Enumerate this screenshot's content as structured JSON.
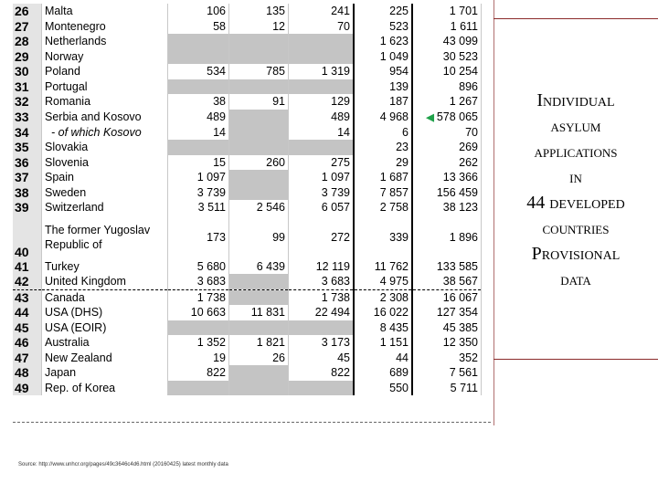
{
  "title": {
    "line1": "Individual",
    "line2": "asylum",
    "line3": "applications",
    "line4": "in",
    "line5": "44 developed",
    "line6": "countries",
    "line7": "Provisional",
    "line8": "data"
  },
  "source": "Source: http://www.unhcr.org/pages/49c3646c4d6.html (20160425) latest monthly data",
  "rows": [
    {
      "n": "26",
      "country": "Malta",
      "c1": "106",
      "c2": "135",
      "c3": "241",
      "c4": "225",
      "c5": "1 701"
    },
    {
      "n": "27",
      "country": "Montenegro",
      "c1": "58",
      "c2": "12",
      "c3": "70",
      "c4": "523",
      "c5": "1 611"
    },
    {
      "n": "28",
      "country": "Netherlands",
      "c1": "",
      "c2": "",
      "c3": "",
      "c4": "1 623",
      "c5": "43 099"
    },
    {
      "n": "29",
      "country": "Norway",
      "c1": "",
      "c2": "",
      "c3": "",
      "c4": "1 049",
      "c5": "30 523"
    },
    {
      "n": "30",
      "country": "Poland",
      "c1": "534",
      "c2": "785",
      "c3": "1 319",
      "c4": "954",
      "c5": "10 254"
    },
    {
      "n": "31",
      "country": "Portugal",
      "c1": "",
      "c2": "",
      "c3": "",
      "c4": "139",
      "c5": "896"
    },
    {
      "n": "32",
      "country": "Romania",
      "c1": "38",
      "c2": "91",
      "c3": "129",
      "c4": "187",
      "c5": "1 267"
    },
    {
      "n": "33",
      "country": "Serbia and Kosovo",
      "c1": "489",
      "c2": "",
      "c3": "489",
      "c4": "4 968",
      "c5": "578 065"
    },
    {
      "n": "34",
      "country": "- of which Kosovo",
      "c1": "14",
      "c2": "",
      "c3": "14",
      "c4": "6",
      "c5": "70"
    },
    {
      "n": "35",
      "country": "Slovakia",
      "c1": "",
      "c2": "",
      "c3": "",
      "c4": "23",
      "c5": "269"
    },
    {
      "n": "36",
      "country": "Slovenia",
      "c1": "15",
      "c2": "260",
      "c3": "275",
      "c4": "29",
      "c5": "262"
    },
    {
      "n": "37",
      "country": "Spain",
      "c1": "1 097",
      "c2": "",
      "c3": "1 097",
      "c4": "1 687",
      "c5": "13 366"
    },
    {
      "n": "38",
      "country": "Sweden",
      "c1": "3 739",
      "c2": "",
      "c3": "3 739",
      "c4": "7 857",
      "c5": "156 459"
    },
    {
      "n": "39",
      "country": "Switzerland",
      "c1": "3 511",
      "c2": "2 546",
      "c3": "6 057",
      "c4": "2 758",
      "c5": "38 123"
    },
    {
      "n": "40",
      "country": "The former Yugoslav Republic of",
      "c1": "173",
      "c2": "99",
      "c3": "272",
      "c4": "339",
      "c5": "1 896"
    },
    {
      "n": "41",
      "country": "Turkey",
      "c1": "5 680",
      "c2": "6 439",
      "c3": "12 119",
      "c4": "11 762",
      "c5": "133 585"
    },
    {
      "n": "42",
      "country": "United Kingdom",
      "c1": "3 683",
      "c2": "",
      "c3": "3 683",
      "c4": "4 975",
      "c5": "38 567"
    },
    {
      "n": "43",
      "country": "Canada",
      "c1": "1 738",
      "c2": "",
      "c3": "1 738",
      "c4": "2 308",
      "c5": "16 067"
    },
    {
      "n": "44",
      "country": "USA (DHS)",
      "c1": "10 663",
      "c2": "11 831",
      "c3": "22 494",
      "c4": "16 022",
      "c5": "127 354"
    },
    {
      "n": "45",
      "country": "USA (EOIR)",
      "c1": "",
      "c2": "",
      "c3": "",
      "c4": "8 435",
      "c5": "45 385"
    },
    {
      "n": "46",
      "country": "Australia",
      "c1": "1 352",
      "c2": "1 821",
      "c3": "3 173",
      "c4": "1 151",
      "c5": "12 350"
    },
    {
      "n": "47",
      "country": "New Zealand",
      "c1": "19",
      "c2": "26",
      "c3": "45",
      "c4": "44",
      "c5": "352"
    },
    {
      "n": "48",
      "country": "Japan",
      "c1": "822",
      "c2": "",
      "c3": "822",
      "c4": "689",
      "c5": "7 561"
    },
    {
      "n": "49",
      "country": "Rep. of Korea",
      "c1": "",
      "c2": "",
      "c3": "",
      "c4": "550",
      "c5": "5 711"
    }
  ]
}
